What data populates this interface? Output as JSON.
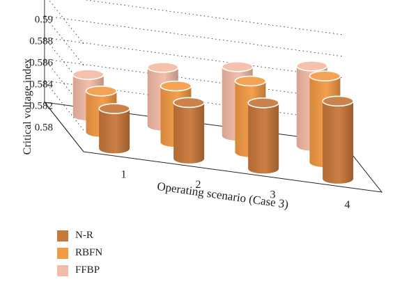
{
  "chart_data": {
    "type": "bar",
    "style": "3d-cylinder",
    "xlabel": "Operating scenario (Case 3)",
    "ylabel": "Critical voltage index",
    "categories": [
      "1",
      "2",
      "3",
      "4"
    ],
    "y_ticks": [
      "0.58",
      "0.582",
      "0.584",
      "0.586",
      "0.588",
      "0.59"
    ],
    "ylim": [
      0.58,
      0.59
    ],
    "grid": true,
    "legend_position": "bottom-left",
    "series": [
      {
        "name": "N-R",
        "color": "#c8783a",
        "values": [
          0.5837,
          0.5852,
          0.5861,
          0.5872
        ]
      },
      {
        "name": "RBFN",
        "color": "#f39a45",
        "values": [
          0.5838,
          0.5852,
          0.5866,
          0.588
        ]
      },
      {
        "name": "FFBP",
        "color": "#f3bca6",
        "values": [
          0.5838,
          0.5854,
          0.5864,
          0.5874
        ]
      }
    ]
  }
}
